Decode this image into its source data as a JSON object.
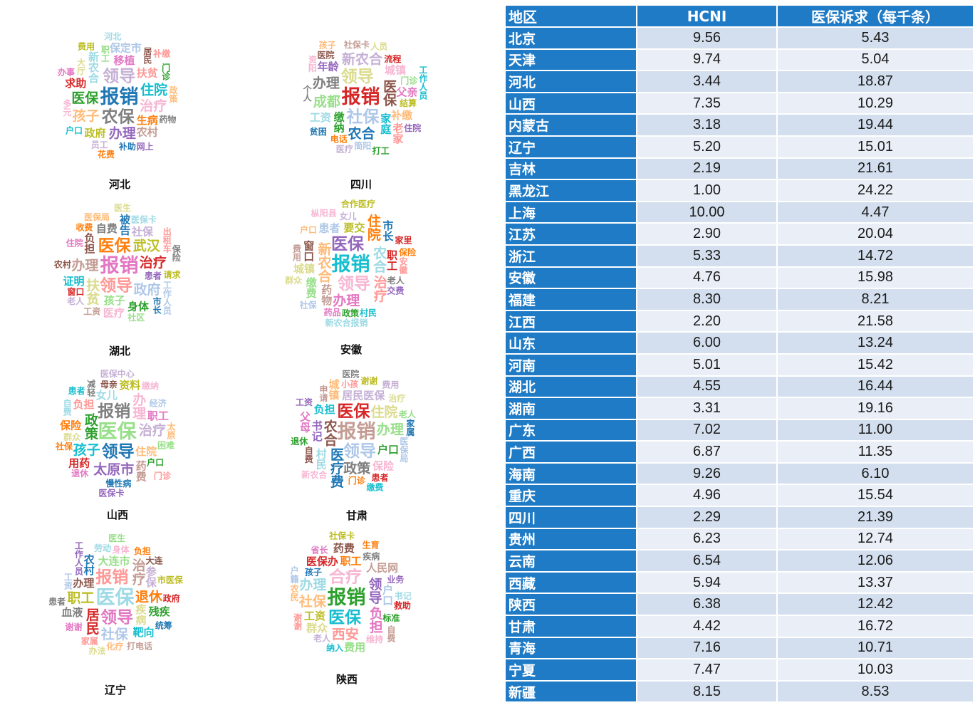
{
  "colors": {
    "header_blue": "#1f7bc6",
    "row_odd": "#d3dfee",
    "row_even": "#eaeff7",
    "palette": [
      "#1f77b4",
      "#ff7f0e",
      "#2ca02c",
      "#d62728",
      "#9467bd",
      "#8c564b",
      "#e377c2",
      "#7f7f7f",
      "#bcbd22",
      "#17becf",
      "#aec7e8",
      "#ffbb78",
      "#98df8a",
      "#ff9896",
      "#c5b0d5",
      "#c49c94",
      "#f7b6d2",
      "#dbdb8d",
      "#9edae5"
    ]
  },
  "word_clouds": [
    {
      "label": "河北",
      "words": [
        "报销",
        "农保",
        "领导",
        "医保",
        "住院",
        "治疗",
        "办理",
        "孩子",
        "新农合",
        "移植",
        "扶贫",
        "生病",
        "政府",
        "农村",
        "求助",
        "保定市",
        "大厅",
        "居民",
        "职工",
        "补助",
        "药物",
        "员工",
        "门诊",
        "户口",
        "多元",
        "网上",
        "政策",
        "河北",
        "办事",
        "补缴",
        "花费",
        "费用"
      ]
    },
    {
      "label": "四川",
      "words": [
        "报销",
        "社保",
        "领导",
        "医保",
        "成都",
        "农合",
        "办理",
        "新农合",
        "缴纳",
        "家庭",
        "城镇",
        "年龄",
        "补缴",
        "工资",
        "父亲",
        "老家",
        "电话",
        "结算",
        "社保卡",
        "流程",
        "简阳",
        "人员",
        "医院",
        "门诊",
        "贫困",
        "个人",
        "医疗",
        "打工",
        "工作人员",
        "资阳",
        "住院",
        "孩子"
      ]
    },
    {
      "label": "湖北",
      "words": [
        "报销",
        "领导",
        "医保",
        "武汉",
        "办理",
        "治疗",
        "政府",
        "扶贫",
        "负担",
        "孩子",
        "被告",
        "自费",
        "社保",
        "身体",
        "证明",
        "医疗",
        "患者",
        "医保局",
        "医保卡",
        "住院",
        "出租车",
        "收费",
        "请求",
        "工资",
        "窗口",
        "工作人员",
        "医生",
        "农村",
        "社区",
        "市长",
        "保险",
        "老人"
      ]
    },
    {
      "label": "安徽",
      "words": [
        "报销",
        "领导",
        "医保",
        "新农合",
        "农合",
        "办理",
        "治疗",
        "住院",
        "要交",
        "药物",
        "职工",
        "患者",
        "城镇",
        "窗口",
        "缴费",
        "市长",
        "老人",
        "女儿",
        "政策",
        "村民",
        "枞阳县",
        "交费",
        "户口",
        "新农合报销",
        "药品",
        "安徽",
        "保险",
        "合作医疗",
        "费用",
        "家里",
        "社保",
        "群众"
      ]
    },
    {
      "label": "山西",
      "words": [
        "医保",
        "领导",
        "报销",
        "治疗",
        "政策",
        "孩子",
        "办理",
        "太原市",
        "住院",
        "女儿",
        "职工",
        "负担",
        "保险",
        "资料",
        "药费",
        "用药",
        "经济",
        "群众",
        "母亲",
        "困难",
        "慢性病",
        "减轻",
        "医保中心",
        "户口",
        "患者",
        "缴纳",
        "医保卡",
        "太原",
        "自费",
        "退休",
        "门诊",
        "社保"
      ]
    },
    {
      "label": "甘肃",
      "words": [
        "报销",
        "医保",
        "领导",
        "住院",
        "农合",
        "办理",
        "医疗费",
        "政策",
        "居民医保",
        "户口",
        "负担",
        "保险",
        "书记",
        "城镇",
        "村民",
        "父母",
        "小孩",
        "门诊",
        "谢谢",
        "申请",
        "患者",
        "医保局",
        "治疗",
        "自费",
        "老人",
        "家属",
        "医院",
        "费用",
        "退休",
        "缴费",
        "新农合",
        "工资"
      ]
    },
    {
      "label": "辽宁",
      "words": [
        "医保",
        "领导",
        "报销",
        "退休",
        "职工",
        "治疗",
        "居民",
        "社保",
        "疾病",
        "办理",
        "大连市",
        "农村",
        "血液",
        "参保",
        "残疾",
        "靶向",
        "身体",
        "工作人员",
        "化疗",
        "劳动",
        "谢谢",
        "家属",
        "负担",
        "市医保",
        "打电话",
        "政府",
        "工资",
        "办法",
        "大连",
        "医生",
        "统筹",
        "患者"
      ]
    },
    {
      "label": "陕西",
      "words": [
        "报销",
        "医保",
        "合疗",
        "领导",
        "社保",
        "办理",
        "负担",
        "西安",
        "职工",
        "工资",
        "人民网",
        "医保办",
        "户口",
        "群众",
        "药费",
        "费用",
        "孩子",
        "疾病",
        "老人",
        "标准",
        "纳入",
        "维持",
        "业务",
        "农民",
        "书记",
        "省长",
        "谢谢",
        "生育",
        "社保卡",
        "自费",
        "救助",
        "户籍"
      ]
    }
  ],
  "chart_data": {
    "type": "table",
    "columns": [
      "地区",
      "HCNI",
      "医保诉求（每千条）"
    ],
    "rows": [
      [
        "北京",
        "9.56",
        "5.43"
      ],
      [
        "天津",
        "9.74",
        "5.04"
      ],
      [
        "河北",
        "3.44",
        "18.87"
      ],
      [
        "山西",
        "7.35",
        "10.29"
      ],
      [
        "内蒙古",
        "3.18",
        "19.44"
      ],
      [
        "辽宁",
        "5.20",
        "15.01"
      ],
      [
        "吉林",
        "2.19",
        "21.61"
      ],
      [
        "黑龙江",
        "1.00",
        "24.22"
      ],
      [
        "上海",
        "10.00",
        "4.47"
      ],
      [
        "江苏",
        "2.90",
        "20.04"
      ],
      [
        "浙江",
        "5.33",
        "14.72"
      ],
      [
        "安徽",
        "4.76",
        "15.98"
      ],
      [
        "福建",
        "8.30",
        "8.21"
      ],
      [
        "江西",
        "2.20",
        "21.58"
      ],
      [
        "山东",
        "6.00",
        "13.24"
      ],
      [
        "河南",
        "5.01",
        "15.42"
      ],
      [
        "湖北",
        "4.55",
        "16.44"
      ],
      [
        "湖南",
        "3.31",
        "19.16"
      ],
      [
        "广东",
        "7.02",
        "11.00"
      ],
      [
        "广西",
        "6.87",
        "11.35"
      ],
      [
        "海南",
        "9.26",
        "6.10"
      ],
      [
        "重庆",
        "4.96",
        "15.54"
      ],
      [
        "四川",
        "2.29",
        "21.39"
      ],
      [
        "贵州",
        "6.23",
        "12.74"
      ],
      [
        "云南",
        "6.54",
        "12.06"
      ],
      [
        "西藏",
        "5.94",
        "13.37"
      ],
      [
        "陕西",
        "6.38",
        "12.42"
      ],
      [
        "甘肃",
        "4.42",
        "16.72"
      ],
      [
        "青海",
        "7.16",
        "10.71"
      ],
      [
        "宁夏",
        "7.47",
        "10.03"
      ],
      [
        "新疆",
        "8.15",
        "8.53"
      ]
    ]
  }
}
